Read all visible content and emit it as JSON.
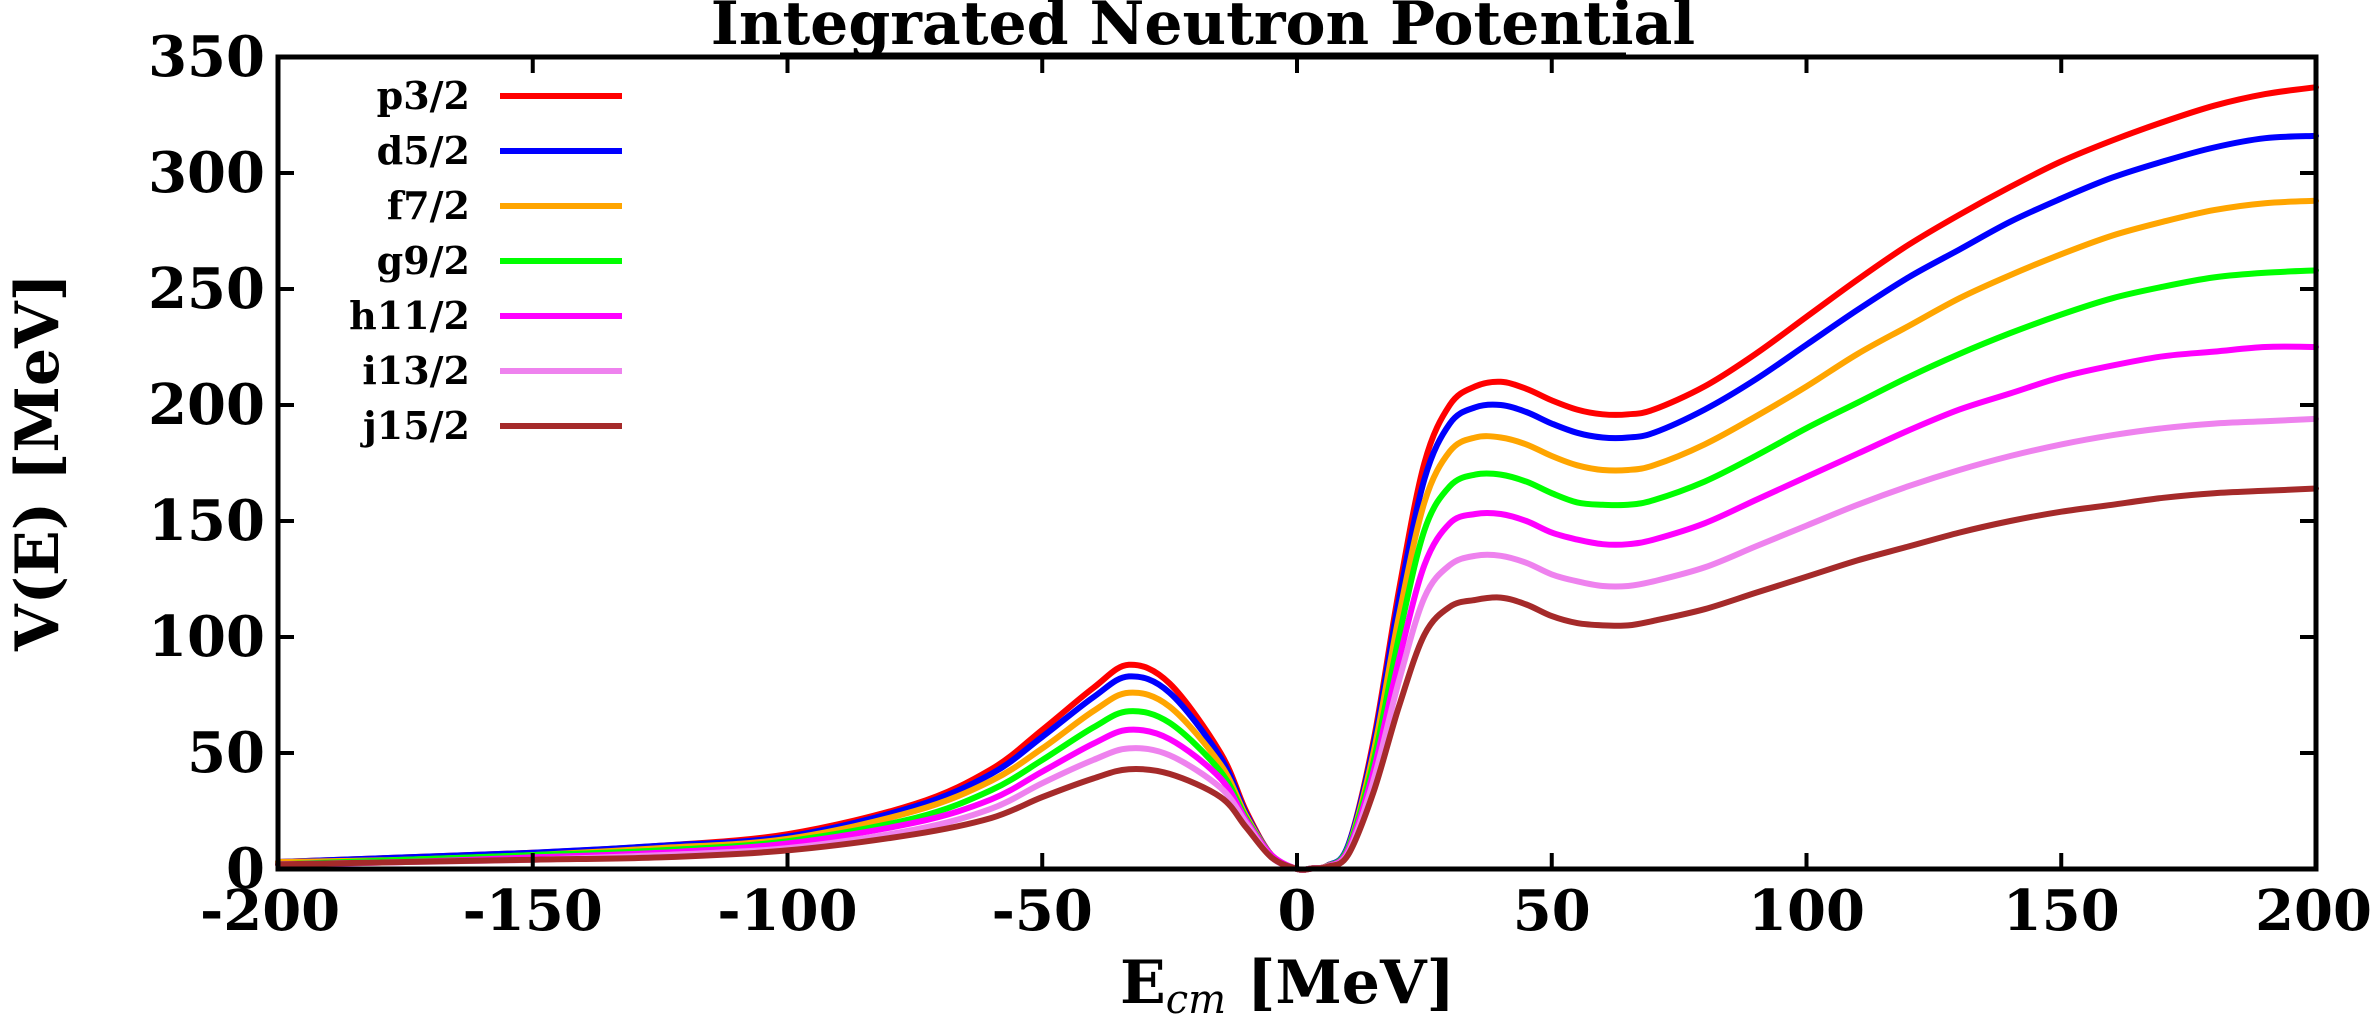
{
  "chart_data": {
    "type": "line",
    "title": "Integrated Neutron Potential",
    "xlabel": {
      "main": "E",
      "sub": "cm",
      "unit": " [MeV]"
    },
    "ylabel": "V(E) [MeV]",
    "xlim": [
      -200,
      200
    ],
    "ylim": [
      0,
      350
    ],
    "xticks": [
      -200,
      -150,
      -100,
      -50,
      0,
      50,
      100,
      150,
      200
    ],
    "yticks": [
      0,
      50,
      100,
      150,
      200,
      250,
      300,
      350
    ],
    "grid": false,
    "legend_position": "top-left",
    "x": [
      -200,
      -175,
      -150,
      -125,
      -100,
      -75,
      -60,
      -50,
      -40,
      -33,
      -25,
      -15,
      -10,
      -5,
      0,
      3,
      6,
      10,
      15,
      20,
      25,
      30,
      35,
      40,
      45,
      50,
      55,
      60,
      65,
      70,
      80,
      90,
      100,
      110,
      120,
      130,
      140,
      150,
      160,
      170,
      180,
      190,
      200
    ],
    "series": [
      {
        "name": "p3/2",
        "color": "#ff0000",
        "values": [
          3,
          5,
          7,
          10,
          15,
          28,
          43,
          60,
          78,
          88,
          80,
          50,
          25,
          6,
          0,
          0.3,
          1.5,
          10,
          55,
          120,
          175,
          200,
          208,
          210,
          207,
          202,
          198,
          196,
          196,
          198,
          208,
          222,
          238,
          254,
          269,
          282,
          294,
          305,
          314,
          322,
          329,
          334,
          337
        ]
      },
      {
        "name": "d5/2",
        "color": "#0000ff",
        "values": [
          3,
          5,
          7,
          10,
          14,
          27,
          41,
          57,
          74,
          83,
          76,
          48,
          24,
          6,
          0,
          0.3,
          1.5,
          10,
          53,
          116,
          168,
          192,
          199,
          200,
          197,
          192,
          188,
          186,
          186,
          188,
          198,
          211,
          226,
          241,
          255,
          267,
          279,
          289,
          298,
          305,
          311,
          315,
          316
        ]
      },
      {
        "name": "f7/2",
        "color": "#ffa500",
        "values": [
          3,
          4,
          6,
          9,
          13,
          25,
          38,
          52,
          68,
          76,
          70,
          45,
          23,
          6,
          0,
          0.3,
          1.4,
          9,
          50,
          109,
          158,
          180,
          186,
          186,
          183,
          178,
          174,
          172,
          172,
          174,
          183,
          195,
          208,
          222,
          234,
          246,
          256,
          265,
          273,
          279,
          284,
          287,
          288
        ]
      },
      {
        "name": "g9/2",
        "color": "#00ff00",
        "values": [
          2,
          4,
          6,
          8,
          12,
          22,
          34,
          47,
          61,
          68,
          63,
          42,
          22,
          6,
          0,
          0.3,
          1.3,
          9,
          46,
          100,
          146,
          165,
          170,
          170,
          167,
          162,
          158,
          157,
          157,
          159,
          167,
          178,
          190,
          201,
          212,
          222,
          231,
          239,
          246,
          251,
          255,
          257,
          258
        ]
      },
      {
        "name": "h11/2",
        "color": "#ff00ff",
        "values": [
          2,
          3,
          5,
          7,
          11,
          20,
          30,
          42,
          54,
          60,
          56,
          39,
          21,
          6,
          0,
          0.3,
          1.2,
          8,
          42,
          90,
          131,
          149,
          153,
          153,
          150,
          145,
          142,
          140,
          140,
          142,
          149,
          159,
          169,
          179,
          189,
          198,
          205,
          212,
          217,
          221,
          223,
          225,
          225
        ]
      },
      {
        "name": "i13/2",
        "color": "#ee82ee",
        "values": [
          2,
          3,
          4,
          6,
          9,
          17,
          26,
          37,
          47,
          52,
          49,
          35,
          20,
          5,
          0,
          0.2,
          1.1,
          7,
          38,
          81,
          117,
          131,
          135,
          135,
          132,
          127,
          124,
          122,
          122,
          124,
          130,
          139,
          148,
          157,
          165,
          172,
          178,
          183,
          187,
          190,
          192,
          193,
          194
        ]
      },
      {
        "name": "j15/2",
        "color": "#a52a2a",
        "values": [
          2,
          3,
          4,
          5,
          8,
          15,
          22,
          31,
          39,
          43,
          41,
          31,
          18,
          5,
          0,
          0.2,
          1.0,
          6,
          33,
          70,
          101,
          113,
          116,
          117,
          114,
          109,
          106,
          105,
          105,
          107,
          112,
          119,
          126,
          133,
          139,
          145,
          150,
          154,
          157,
          160,
          162,
          163,
          164
        ]
      }
    ]
  }
}
